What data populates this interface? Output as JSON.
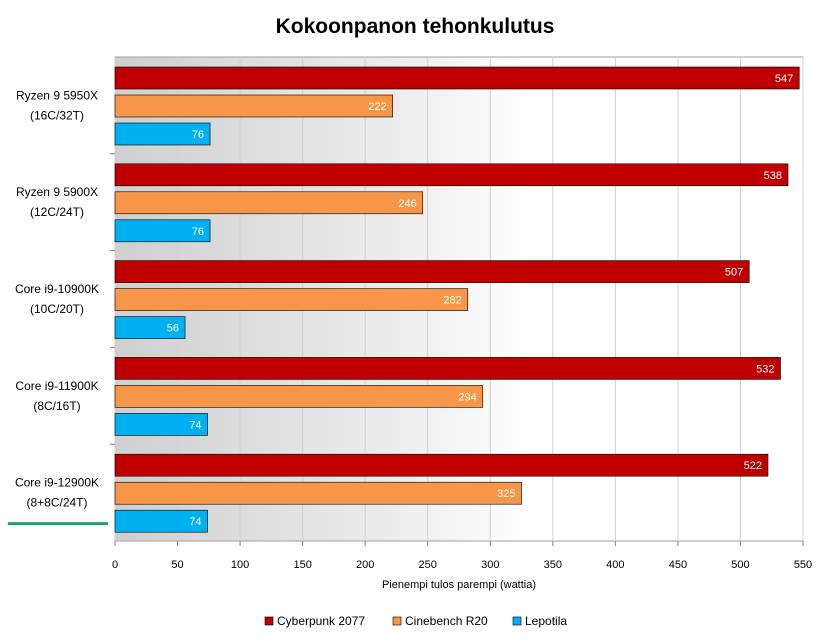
{
  "chart_data": {
    "type": "bar",
    "orientation": "horizontal",
    "title": "Kokoonpanon tehonkulutus",
    "xlabel": "Pienempi tulos parempi (wattia)",
    "ylabel": "",
    "xlim": [
      0,
      550
    ],
    "xticks": [
      0,
      50,
      100,
      150,
      200,
      250,
      300,
      350,
      400,
      450,
      500,
      550
    ],
    "grid": true,
    "legend_position": "bottom",
    "categories": [
      [
        "Ryzen 9 5950X",
        "(16C/32T)"
      ],
      [
        "Ryzen 9 5900X",
        "(12C/24T)"
      ],
      [
        "Core i9-10900K",
        "(10C/20T)"
      ],
      [
        "Core i9-11900K",
        "(8C/16T)"
      ],
      [
        "Core i9-12900K",
        "(8+8C/24T)"
      ]
    ],
    "highlighted_category": "Core i9-12900K",
    "series": [
      {
        "name": "Cyberpunk 2077",
        "color": "#c00000",
        "values": [
          547,
          538,
          507,
          532,
          522
        ]
      },
      {
        "name": "Cinebench R20",
        "color": "#f79646",
        "values": [
          222,
          246,
          282,
          294,
          325
        ]
      },
      {
        "name": "Lepotila",
        "color": "#00b0f0",
        "values": [
          76,
          76,
          56,
          74,
          74
        ]
      }
    ],
    "highlight_color": "#21a366"
  }
}
